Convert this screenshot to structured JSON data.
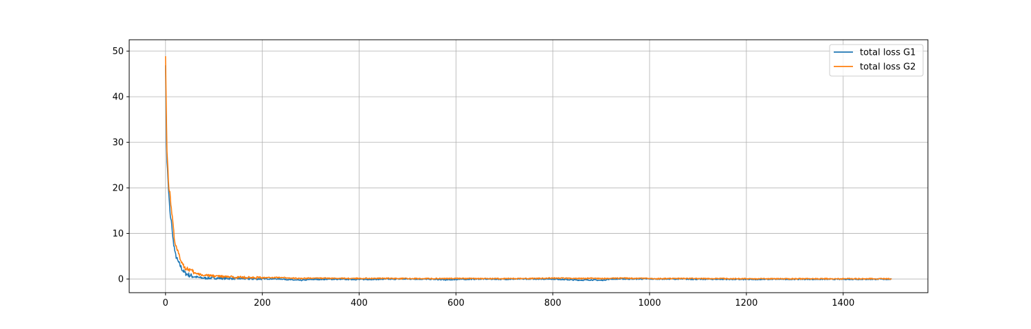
{
  "chart_data": {
    "type": "line",
    "title": "",
    "xlabel": "",
    "ylabel": "",
    "xlim": [
      -75,
      1575
    ],
    "ylim": [
      -3,
      52.5
    ],
    "x_ticks": [
      0,
      200,
      400,
      600,
      800,
      1000,
      1200,
      1400
    ],
    "y_ticks": [
      0,
      10,
      20,
      30,
      40,
      50
    ],
    "grid": true,
    "legend_position": "top-right",
    "series": [
      {
        "name": "total loss G1",
        "color": "#1f77b4",
        "points": [
          [
            0,
            47.5
          ],
          [
            1,
            38
          ],
          [
            2,
            30
          ],
          [
            3,
            26
          ],
          [
            5,
            22
          ],
          [
            7,
            18
          ],
          [
            10,
            13.5
          ],
          [
            13,
            12
          ],
          [
            15,
            9
          ],
          [
            18,
            7
          ],
          [
            20,
            5.5
          ],
          [
            25,
            4
          ],
          [
            30,
            3
          ],
          [
            35,
            2
          ],
          [
            40,
            1.3
          ],
          [
            50,
            0.8
          ],
          [
            60,
            0.5
          ],
          [
            70,
            0.3
          ],
          [
            80,
            0.2
          ],
          [
            100,
            0.2
          ],
          [
            120,
            0.15
          ],
          [
            150,
            0.1
          ],
          [
            180,
            0.05
          ],
          [
            200,
            0.05
          ],
          [
            240,
            0
          ],
          [
            260,
            -0.2
          ],
          [
            280,
            -0.3
          ],
          [
            300,
            -0.1
          ],
          [
            350,
            -0.05
          ],
          [
            400,
            -0.1
          ],
          [
            450,
            -0.05
          ],
          [
            500,
            0
          ],
          [
            550,
            -0.05
          ],
          [
            580,
            -0.2
          ],
          [
            600,
            -0.1
          ],
          [
            650,
            0
          ],
          [
            700,
            -0.05
          ],
          [
            750,
            0
          ],
          [
            800,
            0
          ],
          [
            840,
            -0.2
          ],
          [
            860,
            -0.25
          ],
          [
            880,
            -0.2
          ],
          [
            900,
            -0.3
          ],
          [
            920,
            0
          ],
          [
            950,
            0
          ],
          [
            1000,
            0
          ],
          [
            1050,
            0
          ],
          [
            1100,
            -0.05
          ],
          [
            1150,
            -0.05
          ],
          [
            1200,
            -0.1
          ],
          [
            1250,
            -0.05
          ],
          [
            1300,
            -0.05
          ],
          [
            1350,
            -0.05
          ],
          [
            1400,
            -0.05
          ],
          [
            1450,
            -0.05
          ],
          [
            1500,
            -0.05
          ]
        ]
      },
      {
        "name": "total loss G2",
        "color": "#ff7f0e",
        "points": [
          [
            0,
            49.5
          ],
          [
            1,
            42
          ],
          [
            2,
            34
          ],
          [
            3,
            28
          ],
          [
            5,
            24
          ],
          [
            7,
            20
          ],
          [
            10,
            18
          ],
          [
            13,
            14
          ],
          [
            15,
            13
          ],
          [
            18,
            9
          ],
          [
            20,
            8
          ],
          [
            25,
            6
          ],
          [
            30,
            4.5
          ],
          [
            35,
            3.5
          ],
          [
            40,
            2.5
          ],
          [
            50,
            2
          ],
          [
            60,
            1.3
          ],
          [
            70,
            1
          ],
          [
            80,
            0.8
          ],
          [
            100,
            0.7
          ],
          [
            120,
            0.5
          ],
          [
            150,
            0.4
          ],
          [
            180,
            0.3
          ],
          [
            200,
            0.3
          ],
          [
            240,
            0.35
          ],
          [
            260,
            0.2
          ],
          [
            280,
            0.1
          ],
          [
            300,
            0.2
          ],
          [
            350,
            0.15
          ],
          [
            400,
            0.15
          ],
          [
            450,
            0.15
          ],
          [
            500,
            0.1
          ],
          [
            550,
            0.1
          ],
          [
            580,
            0.1
          ],
          [
            600,
            0.15
          ],
          [
            650,
            0.1
          ],
          [
            700,
            0.1
          ],
          [
            750,
            0.1
          ],
          [
            800,
            0.2
          ],
          [
            840,
            0.15
          ],
          [
            860,
            0.1
          ],
          [
            880,
            0.2
          ],
          [
            900,
            0.1
          ],
          [
            920,
            0.15
          ],
          [
            950,
            0.2
          ],
          [
            1000,
            0.1
          ],
          [
            1050,
            0.1
          ],
          [
            1100,
            0.1
          ],
          [
            1150,
            0.1
          ],
          [
            1200,
            0.05
          ],
          [
            1250,
            0.05
          ],
          [
            1300,
            0.05
          ],
          [
            1350,
            0.05
          ],
          [
            1400,
            0.05
          ],
          [
            1450,
            0.05
          ],
          [
            1500,
            0.05
          ]
        ]
      }
    ]
  }
}
